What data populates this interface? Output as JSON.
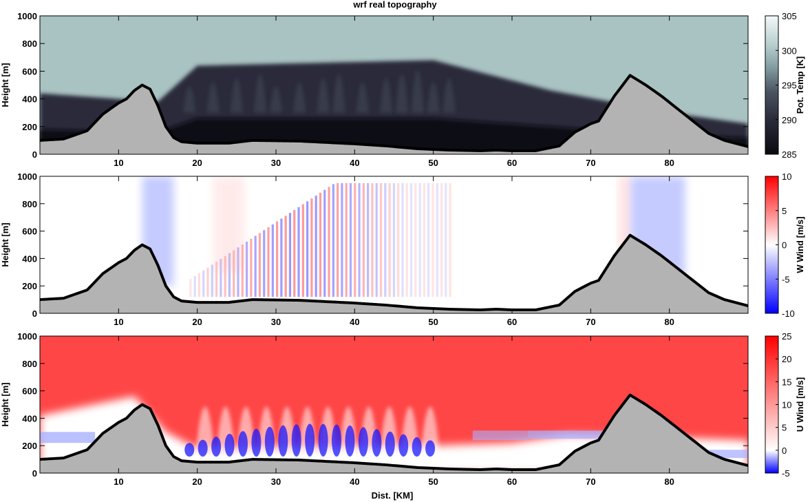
{
  "title": "wrf real topography",
  "xlabel": "Dist. [KM]",
  "chart_data": [
    {
      "type": "heatmap",
      "title": "wrf real topography",
      "xlabel": "",
      "ylabel": "Height [m]",
      "xlim": [
        0,
        90
      ],
      "ylim": [
        0,
        1000
      ],
      "xticks": [
        10,
        20,
        30,
        40,
        50,
        60,
        70,
        80
      ],
      "yticks": [
        0,
        200,
        400,
        600,
        800,
        1000
      ],
      "colorbar": {
        "label": "Pot. Temp [K]",
        "range": [
          285,
          305
        ],
        "ticks": [
          285,
          290,
          295,
          300,
          305
        ],
        "colors": [
          "#0a0a10",
          "#2a2b3a",
          "#4a5360",
          "#7f9a9f",
          "#b5cccc",
          "#f4f8f8"
        ]
      },
      "field": "potential temperature",
      "inversion_top_m": [
        [
          0,
          440
        ],
        [
          15,
          380
        ],
        [
          20,
          640
        ],
        [
          50,
          680
        ],
        [
          65,
          460
        ],
        [
          80,
          300
        ],
        [
          90,
          220
        ]
      ],
      "wave_crests_km": [
        19,
        22,
        25,
        28,
        30,
        33,
        36,
        38,
        41,
        44,
        46,
        48,
        50,
        52
      ]
    },
    {
      "type": "heatmap",
      "title": "",
      "xlabel": "",
      "ylabel": "Height [m]",
      "xlim": [
        0,
        90
      ],
      "ylim": [
        0,
        1000
      ],
      "xticks": [
        10,
        20,
        30,
        40,
        50,
        60,
        70,
        80
      ],
      "yticks": [
        0,
        200,
        400,
        600,
        800,
        1000
      ],
      "colorbar": {
        "label": "W Wind [m/s]",
        "range": [
          -10,
          10
        ],
        "ticks": [
          -10,
          -5,
          0,
          5,
          10
        ],
        "colors": [
          "#0000ff",
          "#ffffff",
          "#ff0000"
        ]
      },
      "field": "vertical wind",
      "wave_region_km": [
        19,
        52
      ],
      "downdraft_regions": [
        [
          13,
          17,
          -2
        ],
        [
          75,
          82,
          -1.5
        ]
      ]
    },
    {
      "type": "heatmap",
      "title": "",
      "xlabel": "Dist. [KM]",
      "ylabel": "Height [m]",
      "xlim": [
        0,
        90
      ],
      "ylim": [
        0,
        1000
      ],
      "xticks": [
        10,
        20,
        30,
        40,
        50,
        60,
        70,
        80
      ],
      "yticks": [
        0,
        200,
        400,
        600,
        800,
        1000
      ],
      "colorbar": {
        "label": "U Wind [m/s]",
        "range": [
          -5,
          25
        ],
        "ticks": [
          -5,
          0,
          5,
          10,
          15,
          20,
          25
        ],
        "colors": [
          "#0000ff",
          "#ffffff",
          "#ff0000"
        ]
      },
      "field": "horizontal wind",
      "max_wind_m_s": 20,
      "reverse_flow_regions_km": [
        [
          19,
          51
        ],
        [
          55,
          62
        ],
        [
          79,
          90
        ]
      ]
    }
  ],
  "terrain_km_m": [
    [
      0,
      100
    ],
    [
      3,
      110
    ],
    [
      6,
      170
    ],
    [
      8,
      290
    ],
    [
      10,
      370
    ],
    [
      11,
      400
    ],
    [
      12,
      460
    ],
    [
      13,
      500
    ],
    [
      14,
      470
    ],
    [
      15,
      350
    ],
    [
      16,
      200
    ],
    [
      17,
      120
    ],
    [
      18,
      90
    ],
    [
      20,
      80
    ],
    [
      24,
      80
    ],
    [
      27,
      100
    ],
    [
      33,
      95
    ],
    [
      40,
      75
    ],
    [
      44,
      60
    ],
    [
      48,
      40
    ],
    [
      52,
      30
    ],
    [
      56,
      25
    ],
    [
      58,
      30
    ],
    [
      60,
      25
    ],
    [
      63,
      25
    ],
    [
      66,
      60
    ],
    [
      68,
      160
    ],
    [
      70,
      220
    ],
    [
      71,
      240
    ],
    [
      73,
      420
    ],
    [
      75,
      570
    ],
    [
      77,
      500
    ],
    [
      79,
      420
    ],
    [
      81,
      330
    ],
    [
      83,
      240
    ],
    [
      85,
      150
    ],
    [
      87,
      100
    ],
    [
      90,
      55
    ]
  ]
}
